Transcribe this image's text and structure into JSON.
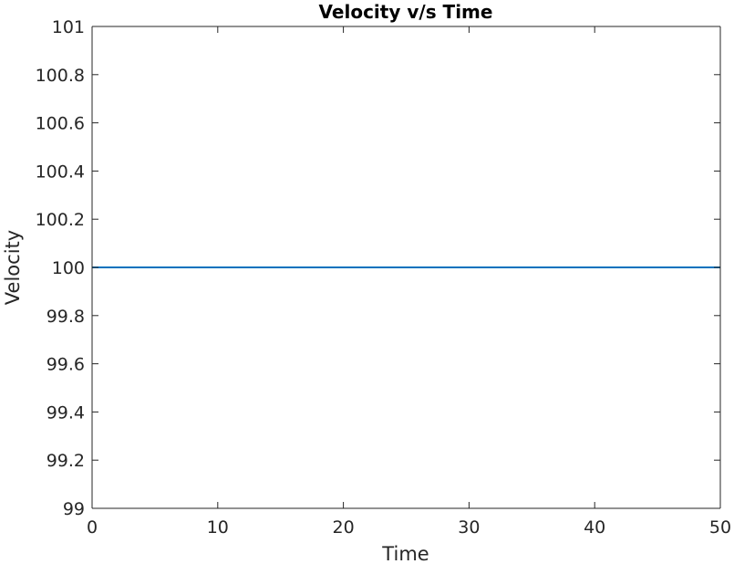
{
  "chart_data": {
    "type": "line",
    "title": "Velocity v/s Time",
    "xlabel": "Time",
    "ylabel": "Velocity",
    "xlim": [
      0,
      50
    ],
    "ylim": [
      99,
      101
    ],
    "xticks": [
      0,
      10,
      20,
      30,
      40,
      50
    ],
    "yticks": [
      99,
      99.2,
      99.4,
      99.6,
      99.8,
      100,
      100.2,
      100.4,
      100.6,
      100.8,
      101
    ],
    "ytick_labels": [
      "99",
      "99.2",
      "99.4",
      "99.6",
      "99.8",
      "100",
      "100.2",
      "100.4",
      "100.6",
      "100.8",
      "101"
    ],
    "grid": false,
    "legend": "none",
    "series": [
      {
        "color": "#0072BD",
        "x": [
          0,
          50
        ],
        "y": [
          100,
          100
        ]
      }
    ]
  }
}
